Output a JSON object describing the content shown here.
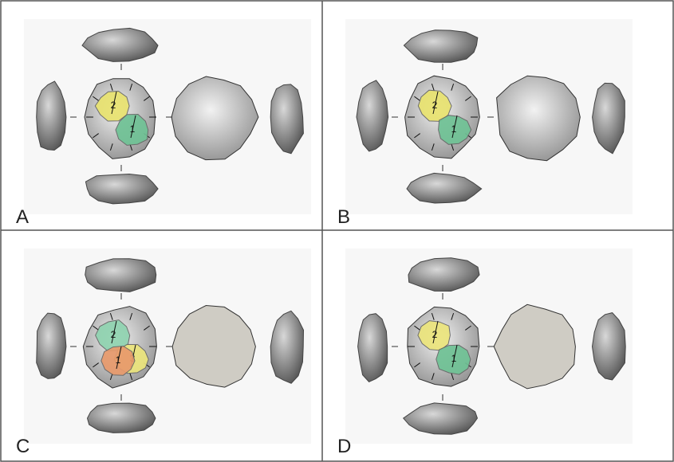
{
  "panels": [
    {
      "label": "A",
      "scars": [
        {
          "label": 2,
          "color": "#e9e36f"
        },
        {
          "label": 1,
          "color": "#6fc295"
        }
      ]
    },
    {
      "label": "B",
      "scars": [
        {
          "label": 2,
          "color": "#e9e36f"
        },
        {
          "label": 1,
          "color": "#6fc295"
        }
      ]
    },
    {
      "label": "C",
      "scars": [
        {
          "label": 2,
          "color": "#8fd3b0"
        },
        {
          "label": 3,
          "color": "#ece57c"
        },
        {
          "label": 1,
          "color": "#e89a6c"
        }
      ]
    },
    {
      "label": "D",
      "scars": [
        {
          "label": 2,
          "color": "#ece57c"
        },
        {
          "label": 1,
          "color": "#6fc295"
        }
      ]
    }
  ]
}
